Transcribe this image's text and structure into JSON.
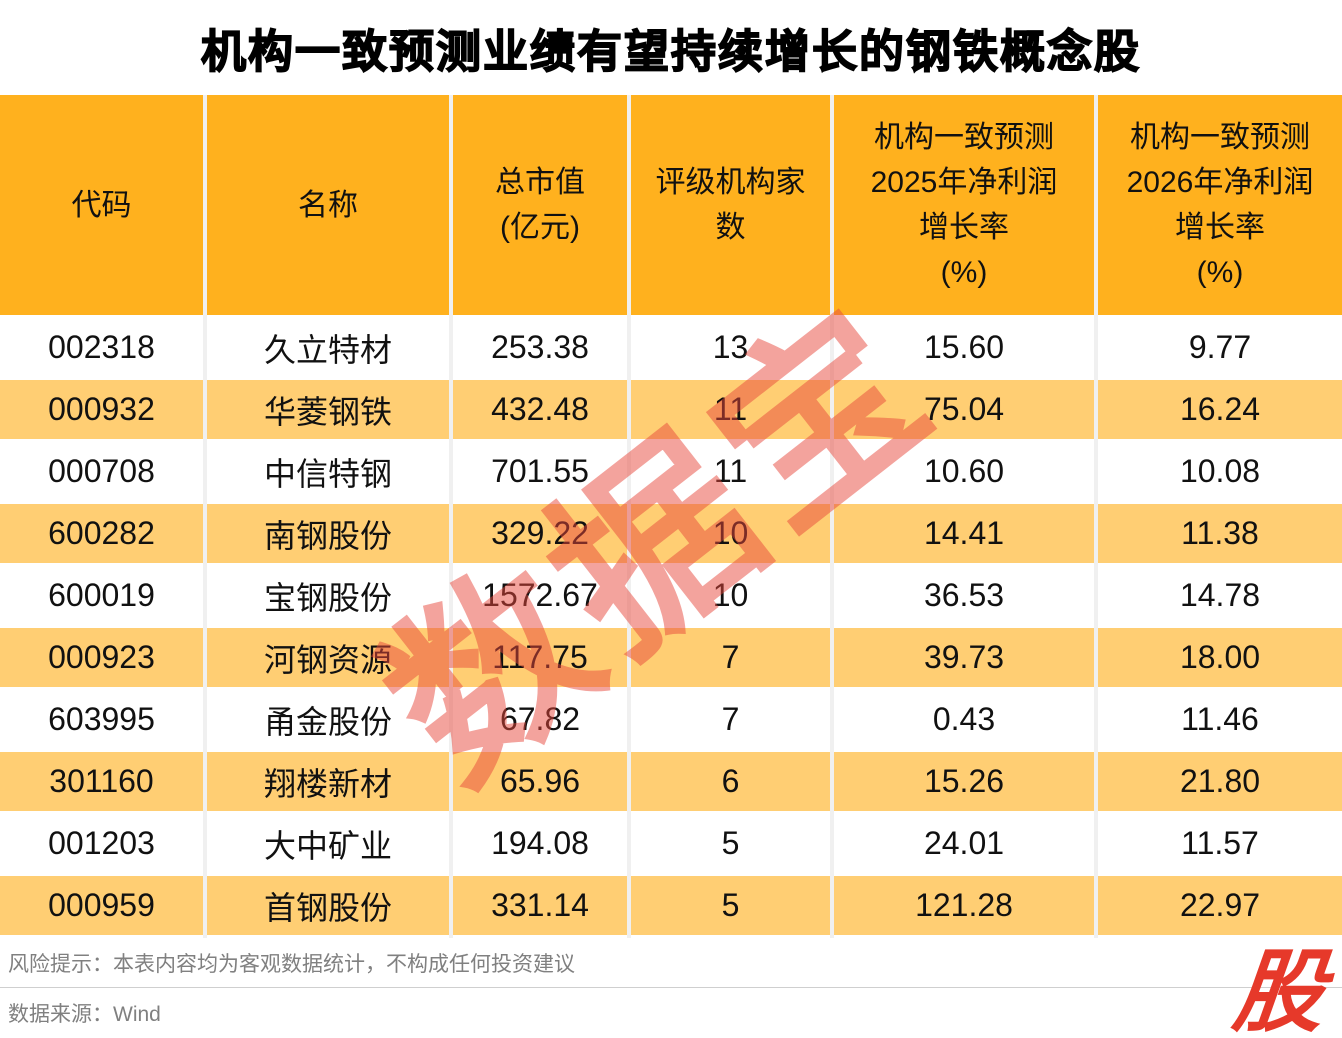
{
  "title": "机构一致预测业绩有望持续增长的钢铁概念股",
  "watermark": {
    "text": "数据宝"
  },
  "logo": {
    "text": "股"
  },
  "colors": {
    "header_bg": "#FFB11E",
    "row_alt_bg": "#FFCE73",
    "row_bg": "#FFFFFF",
    "watermark_red": "rgba(232,72,60,0.5)",
    "logo_red": "#E6392A"
  },
  "table": {
    "columns": [
      {
        "key": "code",
        "label": "代码"
      },
      {
        "key": "name",
        "label": "名称"
      },
      {
        "key": "market_cap",
        "label": "总市值\n(亿元)"
      },
      {
        "key": "rating_count",
        "label": "评级机构家\n数"
      },
      {
        "key": "growth_2025",
        "label": "机构一致预测\n2025年净利润\n增长率\n(%)"
      },
      {
        "key": "growth_2026",
        "label": "机构一致预测\n2026年净利润\n增长率\n(%)"
      }
    ],
    "rows": [
      {
        "code": "002318",
        "name": "久立特材",
        "market_cap": "253.38",
        "rating_count": "13",
        "growth_2025": "15.60",
        "growth_2026": "9.77"
      },
      {
        "code": "000932",
        "name": "华菱钢铁",
        "market_cap": "432.48",
        "rating_count": "11",
        "growth_2025": "75.04",
        "growth_2026": "16.24"
      },
      {
        "code": "000708",
        "name": "中信特钢",
        "market_cap": "701.55",
        "rating_count": "11",
        "growth_2025": "10.60",
        "growth_2026": "10.08"
      },
      {
        "code": "600282",
        "name": "南钢股份",
        "market_cap": "329.22",
        "rating_count": "10",
        "growth_2025": "14.41",
        "growth_2026": "11.38"
      },
      {
        "code": "600019",
        "name": "宝钢股份",
        "market_cap": "1572.67",
        "rating_count": "10",
        "growth_2025": "36.53",
        "growth_2026": "14.78"
      },
      {
        "code": "000923",
        "name": "河钢资源",
        "market_cap": "117.75",
        "rating_count": "7",
        "growth_2025": "39.73",
        "growth_2026": "18.00"
      },
      {
        "code": "603995",
        "name": "甬金股份",
        "market_cap": "67.82",
        "rating_count": "7",
        "growth_2025": "0.43",
        "growth_2026": "11.46"
      },
      {
        "code": "301160",
        "name": "翔楼新材",
        "market_cap": "65.96",
        "rating_count": "6",
        "growth_2025": "15.26",
        "growth_2026": "21.80"
      },
      {
        "code": "001203",
        "name": "大中矿业",
        "market_cap": "194.08",
        "rating_count": "5",
        "growth_2025": "24.01",
        "growth_2026": "11.57"
      },
      {
        "code": "000959",
        "name": "首钢股份",
        "market_cap": "331.14",
        "rating_count": "5",
        "growth_2025": "121.28",
        "growth_2026": "22.97"
      }
    ]
  },
  "footer": {
    "risk": "风险提示：本表内容均为客观数据统计，不构成任何投资建议",
    "source": "数据来源：Wind"
  }
}
